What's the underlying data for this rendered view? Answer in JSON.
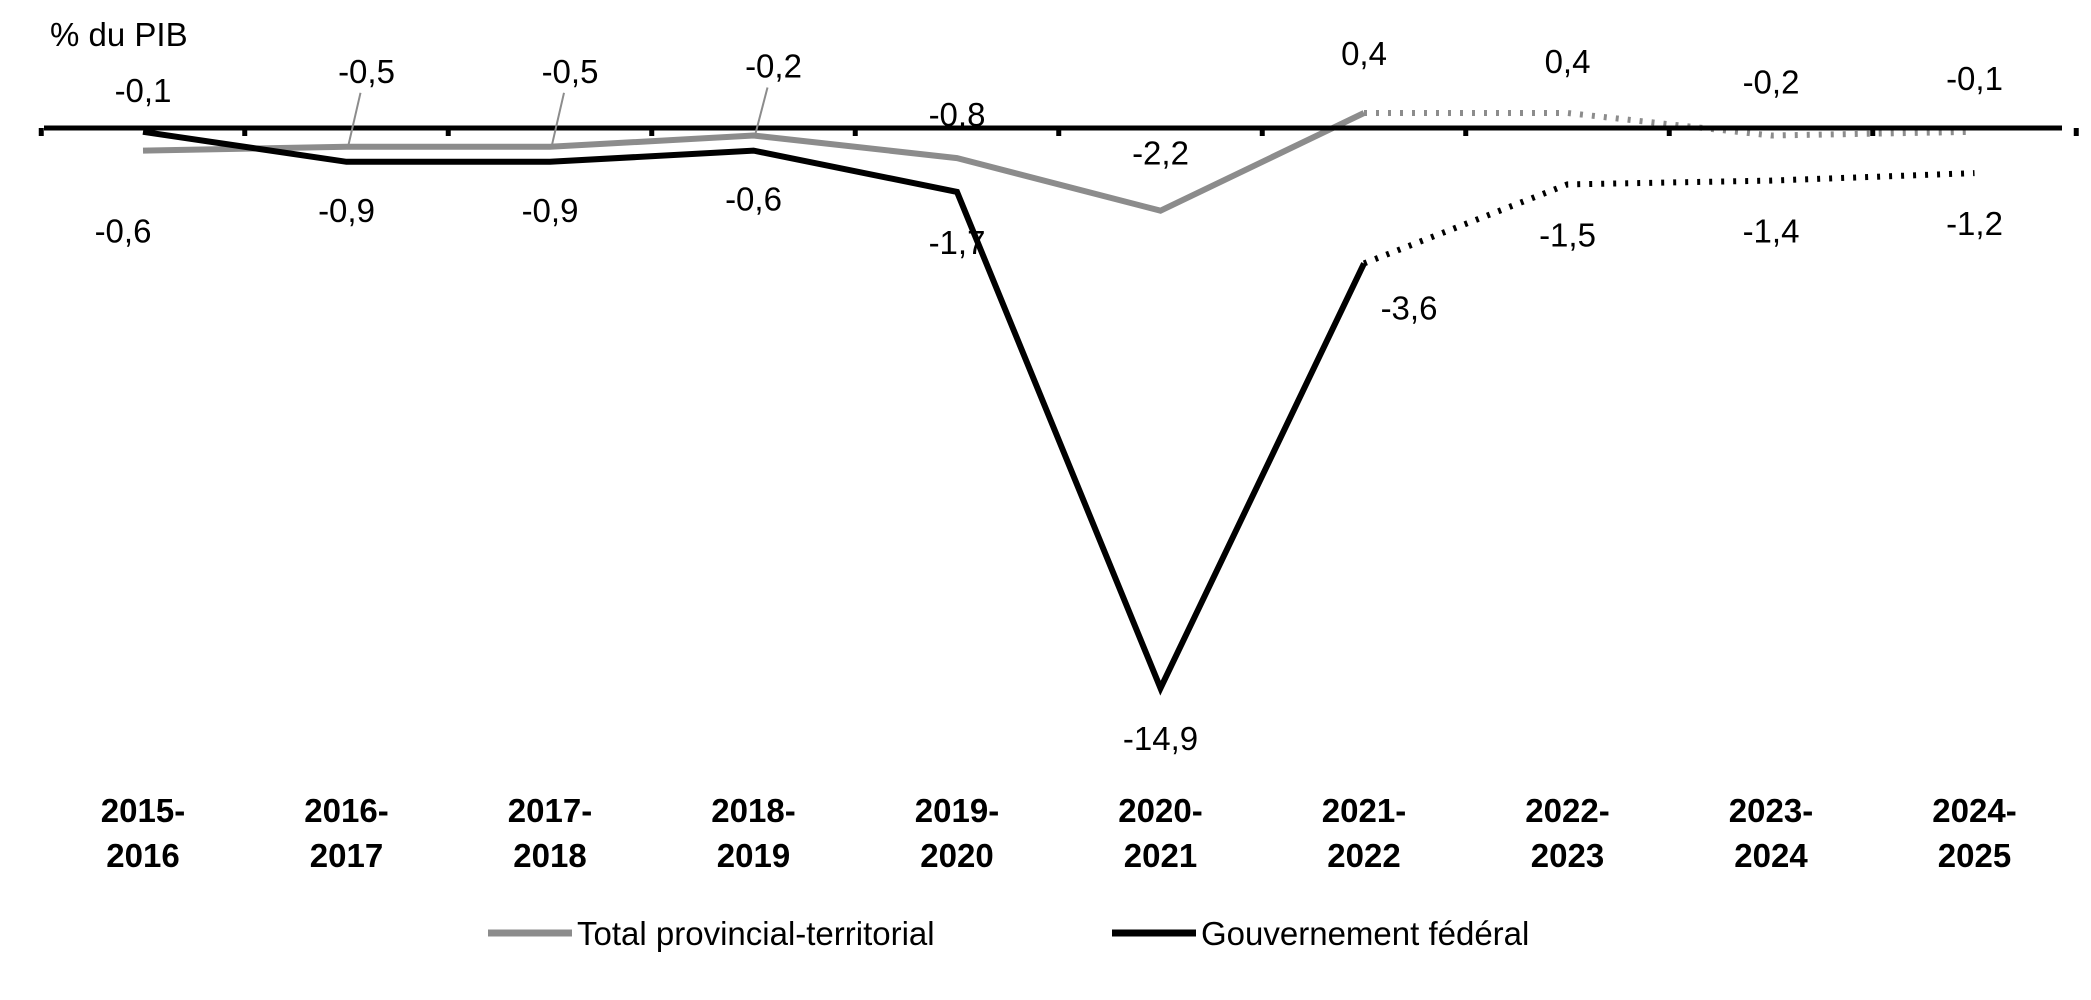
{
  "chart_data": {
    "type": "line",
    "ylabel": "% du PIB",
    "title": "",
    "xlabel": "",
    "ylim": [
      -16,
      0.6
    ],
    "categories": [
      [
        "2015-",
        "2016"
      ],
      [
        "2016-",
        "2017"
      ],
      [
        "2017-",
        "2018"
      ],
      [
        "2018-",
        "2019"
      ],
      [
        "2019-",
        "2020"
      ],
      [
        "2020-",
        "2021"
      ],
      [
        "2021-",
        "2022"
      ],
      [
        "2022-",
        "2023"
      ],
      [
        "2023-",
        "2024"
      ],
      [
        "2024-",
        "2025"
      ]
    ],
    "projection_start_index": 6,
    "legend_position": "bottom",
    "grid": false,
    "series": [
      {
        "name": "Total provincial-territorial",
        "color": "#8c8c8c",
        "values": [
          -0.6,
          -0.5,
          -0.5,
          -0.2,
          -0.8,
          -2.2,
          0.4,
          0.4,
          -0.2,
          -0.1
        ],
        "labels": [
          "-0,6",
          "-0,5",
          "-0,5",
          "-0,2",
          "-0,8",
          "-2,2",
          "0,4",
          "0,4",
          "-0,2",
          "-0,1"
        ]
      },
      {
        "name": "Gouvernement fédéral",
        "color": "#000000",
        "values": [
          -0.1,
          -0.9,
          -0.9,
          -0.6,
          -1.7,
          -14.9,
          -3.6,
          -1.5,
          -1.4,
          -1.2
        ],
        "labels": [
          "-0,1",
          "-0,9",
          "-0,9",
          "-0,6",
          "-1,7",
          "-14,9",
          "-3,6",
          "-1,5",
          "-1,4",
          "-1,2"
        ]
      }
    ]
  }
}
